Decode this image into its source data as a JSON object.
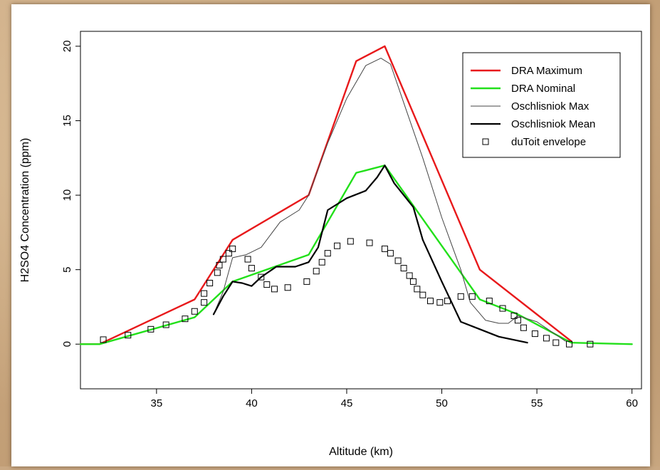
{
  "chart_data": {
    "type": "line",
    "title": "",
    "xlabel": "Altitude (km)",
    "ylabel": "H2SO4 Concentration (ppm)",
    "xlim": [
      31,
      60.5
    ],
    "ylim": [
      -3,
      21
    ],
    "xticks": [
      35,
      40,
      45,
      50,
      55,
      60
    ],
    "yticks": [
      0,
      5,
      10,
      15,
      20
    ],
    "grid": false,
    "legend_position": "top-right",
    "series": [
      {
        "name": "DRA Maximum",
        "color": "#e8191b",
        "style": "line",
        "width": 2.4,
        "x": [
          31,
          32,
          37,
          39,
          43,
          45.5,
          47,
          52,
          56.8
        ],
        "y": [
          0,
          0,
          3,
          7,
          10,
          19,
          20,
          5,
          0.2
        ]
      },
      {
        "name": "DRA Nominal",
        "color": "#22e01a",
        "style": "line",
        "width": 2.4,
        "x": [
          31,
          32,
          37,
          39,
          43,
          45.5,
          47,
          52,
          54,
          56.8,
          60
        ],
        "y": [
          0,
          0,
          1.8,
          4.2,
          6,
          11.5,
          12,
          3,
          2,
          0.1,
          0
        ]
      },
      {
        "name": "Oschlisniok Max",
        "color": "#444444",
        "style": "line",
        "width": 1,
        "x": [
          38,
          38.5,
          39,
          39.7,
          40.5,
          41.5,
          42.5,
          43,
          44,
          45,
          46,
          46.8,
          47.3,
          48,
          49,
          50,
          51,
          51.5,
          52.3,
          53,
          53.5,
          54,
          55,
          56.5
        ],
        "y": [
          2,
          3.5,
          5.8,
          6,
          6.5,
          8.2,
          9,
          10,
          13.5,
          16.5,
          18.7,
          19.2,
          18.8,
          16.2,
          12.5,
          8.5,
          5,
          2.8,
          1.6,
          1.4,
          1.4,
          1.9,
          1.5,
          0.2
        ]
      },
      {
        "name": "Oschlisniok Mean",
        "color": "#000000",
        "style": "line",
        "width": 2.2,
        "x": [
          38,
          38.5,
          39,
          39.5,
          40,
          40.5,
          41.3,
          42.3,
          43,
          43.5,
          44,
          45,
          46,
          46.6,
          47,
          47.5,
          48.5,
          49,
          50,
          51,
          52,
          53,
          54.5
        ],
        "y": [
          2,
          3.2,
          4.2,
          4.1,
          3.9,
          4.5,
          5.2,
          5.2,
          5.5,
          6.5,
          9,
          9.8,
          10.3,
          11.2,
          12,
          10.8,
          9.2,
          7,
          4.2,
          1.5,
          1,
          0.5,
          0.1
        ]
      },
      {
        "name": "duToit envelope",
        "color": "#000000",
        "style": "points",
        "x": [
          32.2,
          33.5,
          34.7,
          35.5,
          36.5,
          37,
          37.5,
          37.5,
          37.8,
          38.2,
          38.3,
          38.5,
          38.8,
          39,
          39.8,
          40,
          40.5,
          40.8,
          41.2,
          41.9,
          42.9,
          43.4,
          43.7,
          44,
          44.5,
          45.2,
          46.2,
          47,
          47.3,
          47.7,
          48,
          48.3,
          48.5,
          48.7,
          49,
          49.4,
          49.9,
          50.3,
          51,
          51.6,
          52.5,
          53.2,
          53.8,
          54,
          54.3,
          54.9,
          55.5,
          56,
          56.7,
          57.8
        ],
        "y": [
          0.3,
          0.6,
          1,
          1.3,
          1.7,
          2.2,
          2.8,
          3.4,
          4.1,
          4.8,
          5.3,
          5.7,
          6.1,
          6.4,
          5.7,
          5.1,
          4.5,
          4,
          3.7,
          3.8,
          4.2,
          4.9,
          5.5,
          6.1,
          6.6,
          6.9,
          6.8,
          6.4,
          6.1,
          5.6,
          5.1,
          4.6,
          4.2,
          3.7,
          3.3,
          2.9,
          2.8,
          2.9,
          3.2,
          3.2,
          2.9,
          2.4,
          1.9,
          1.6,
          1.1,
          0.7,
          0.4,
          0.1,
          0,
          0
        ]
      }
    ]
  }
}
